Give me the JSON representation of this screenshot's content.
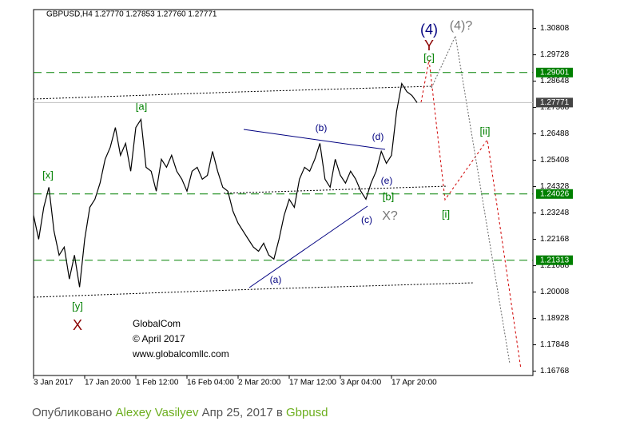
{
  "chart_data": {
    "type": "line",
    "title": "GBPUSD,H4  1.27770 1.27853 1.27760 1.27771",
    "categories": [
      "3 Jan 2017",
      null,
      null,
      null,
      null,
      null,
      null,
      null,
      null,
      null,
      "17 Jan 20:00",
      null,
      null,
      null,
      null,
      null,
      null,
      null,
      null,
      null,
      "1 Feb 12:00",
      null,
      null,
      null,
      null,
      null,
      null,
      null,
      null,
      null,
      "16 Feb 04:00",
      null,
      null,
      null,
      null,
      null,
      null,
      null,
      null,
      null,
      "2 Mar 20:00",
      null,
      null,
      null,
      null,
      null,
      null,
      null,
      null,
      null,
      "17 Mar 12:00",
      null,
      null,
      null,
      null,
      null,
      null,
      null,
      null,
      null,
      "3 Apr 04:00",
      null,
      null,
      null,
      null,
      null,
      null,
      null,
      null,
      null,
      "17 Apr 20:00",
      null,
      null,
      null,
      null,
      null
    ],
    "values": [
      1.2315,
      1.2217,
      1.2348,
      1.243,
      1.225,
      1.2152,
      1.2185,
      1.2054,
      1.2152,
      1.2021,
      1.2217,
      1.2348,
      1.2381,
      1.2447,
      1.2545,
      1.2594,
      1.2675,
      1.2561,
      1.261,
      1.2496,
      1.2675,
      1.2708,
      1.2512,
      1.2496,
      1.2414,
      1.2545,
      1.2512,
      1.2561,
      1.2496,
      1.2463,
      1.2414,
      1.2496,
      1.2512,
      1.2463,
      1.2479,
      1.2577,
      1.2496,
      1.243,
      1.2414,
      1.2332,
      1.2283,
      1.225,
      1.2217,
      1.2185,
      1.2168,
      1.2201,
      1.2152,
      1.2136,
      1.2217,
      1.2315,
      1.2381,
      1.2348,
      1.2463,
      1.2512,
      1.2496,
      1.2545,
      1.261,
      1.2463,
      1.243,
      1.2545,
      1.2479,
      1.2447,
      1.2496,
      1.2463,
      1.2414,
      1.2381,
      1.2447,
      1.2496,
      1.2577,
      1.2528,
      1.2561,
      1.2741,
      1.2855,
      1.2822,
      1.2806,
      1.2777
    ],
    "color": "#000000",
    "ylim": [
      1.1659,
      1.3158
    ],
    "yticks": [
      1.30808,
      1.29728,
      1.28648,
      1.27568,
      1.26488,
      1.25408,
      1.24328,
      1.23248,
      1.22168,
      1.21088,
      1.20008,
      1.18928,
      1.17848,
      1.16768
    ],
    "levels": [
      {
        "value": 1.29001,
        "color": "#008000",
        "dash": true
      },
      {
        "value": 1.27771,
        "color": "#c0c0c0",
        "dash": false
      },
      {
        "value": 1.24026,
        "color": "#008000",
        "dash": true
      },
      {
        "value": 1.21313,
        "color": "#008000",
        "dash": true
      }
    ],
    "wave_labels": [
      "(4)",
      "Y",
      "(4)?",
      "[c]",
      "[a]",
      "[x]",
      "[y]",
      "X",
      "(b)",
      "(d)",
      "(e)",
      "[b]",
      "(c)",
      "X?",
      "(a)",
      "[ii]",
      "[i]"
    ],
    "watermark": [
      "GlobalCom",
      "© April 2017",
      "www.globalcomllc.com"
    ]
  },
  "footer": {
    "prefix": "Опубликовано",
    "author": "Alexey Vasilyev",
    "date": "Апр 25, 2017 в",
    "symbol": "Gbpusd"
  }
}
